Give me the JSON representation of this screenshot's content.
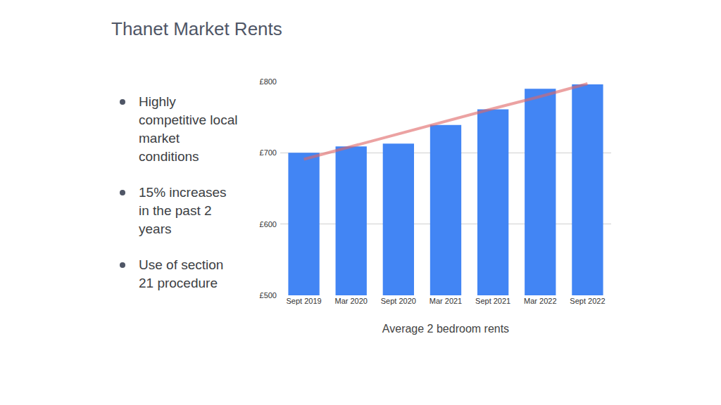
{
  "page_title": "Thanet Market Rents",
  "bullets": [
    "Highly competitive local market conditions",
    "15% increases in the past 2 years",
    "Use of section 21 procedure"
  ],
  "chart_data": {
    "type": "bar",
    "xlabel": "Average 2 bedroom rents",
    "categories": [
      "Sept 2019",
      "Mar 2020",
      "Sept 2020",
      "Mar 2021",
      "Sept 2021",
      "Mar 2022",
      "Sept 2022"
    ],
    "series": [
      {
        "type": "bar",
        "color": "#4285f4",
        "values": [
          700,
          709,
          713,
          739,
          761,
          790,
          796
        ]
      },
      {
        "type": "line",
        "color": "#e06666",
        "values": [
          691,
          709,
          727,
          744,
          762,
          779,
          797
        ]
      }
    ],
    "ylim": [
      500,
      800
    ],
    "yticks": [
      {
        "value": 500,
        "label": "£500"
      },
      {
        "value": 600,
        "label": "£600"
      },
      {
        "value": 700,
        "label": "£700"
      },
      {
        "value": 800,
        "label": "£800"
      }
    ],
    "grid": true
  }
}
